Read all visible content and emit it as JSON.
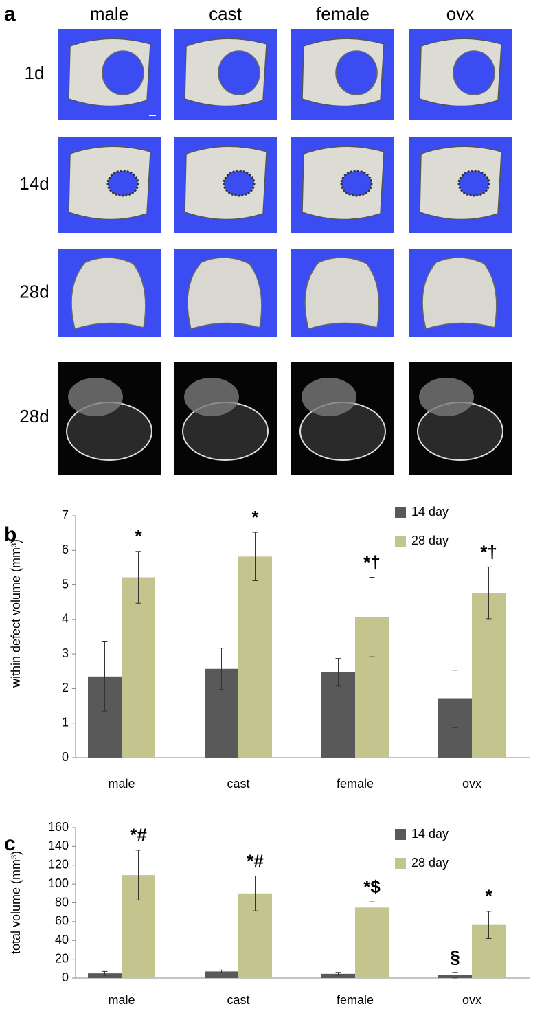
{
  "panel_a": {
    "label": "a",
    "columns": [
      "male",
      "cast",
      "female",
      "ovx"
    ],
    "rows": [
      "1d",
      "14d",
      "28d",
      "28d"
    ]
  },
  "chart_data": [
    {
      "type": "bar",
      "panel_label": "b",
      "y_label": "within defect volume (mm³)",
      "categories": [
        "male",
        "cast",
        "female",
        "ovx"
      ],
      "series": [
        {
          "name": "14 day",
          "color": "#595959",
          "values": [
            2.35,
            2.57,
            2.47,
            1.7
          ],
          "errors": [
            1.0,
            0.6,
            0.4,
            0.83
          ],
          "annotations": [
            null,
            null,
            null,
            null
          ]
        },
        {
          "name": "28 day",
          "color": "#c4c48e",
          "values": [
            5.22,
            5.82,
            4.07,
            4.77
          ],
          "errors": [
            0.75,
            0.7,
            1.15,
            0.75
          ],
          "annotations": [
            "*",
            "*",
            "*†",
            "*†"
          ]
        }
      ],
      "ylim": [
        0,
        7
      ],
      "yticks": [
        0,
        1,
        2,
        3,
        4,
        5,
        6,
        7
      ],
      "legend": "top-right"
    },
    {
      "type": "bar",
      "panel_label": "c",
      "y_label": "total volume (mm³)",
      "categories": [
        "male",
        "cast",
        "female",
        "ovx"
      ],
      "series": [
        {
          "name": "14 day",
          "color": "#595959",
          "values": [
            5,
            7,
            4.5,
            3
          ],
          "errors": [
            2,
            1.5,
            1.5,
            3
          ],
          "annotations": [
            null,
            null,
            null,
            "§"
          ]
        },
        {
          "name": "28 day",
          "color": "#c4c48e",
          "values": [
            109.5,
            90,
            75,
            56.5
          ],
          "errors": [
            26.5,
            18.5,
            6,
            14.5
          ],
          "annotations": [
            "*#",
            "*#",
            "*$",
            "*"
          ]
        }
      ],
      "ylim": [
        0,
        160
      ],
      "yticks": [
        0,
        20,
        40,
        60,
        80,
        100,
        120,
        140,
        160
      ],
      "legend": "top-right"
    }
  ]
}
